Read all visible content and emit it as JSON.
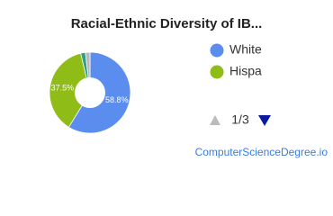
{
  "chart_data": {
    "type": "pie",
    "title": "Racial-Ethnic Diversity of IB...",
    "categories": [
      "White",
      "Hispa",
      null,
      null
    ],
    "values": [
      58.8,
      37.5,
      1.9,
      1.8
    ],
    "value_labels": [
      "58.8%",
      "37.5%",
      null,
      null
    ],
    "colors": [
      "#5b8def",
      "#8fbc17",
      "#2e9e86",
      "#b8b8b8"
    ],
    "legend": "right"
  },
  "pager": {
    "label": "1/3"
  },
  "footer": {
    "source": "ComputerScienceDegree.io"
  }
}
